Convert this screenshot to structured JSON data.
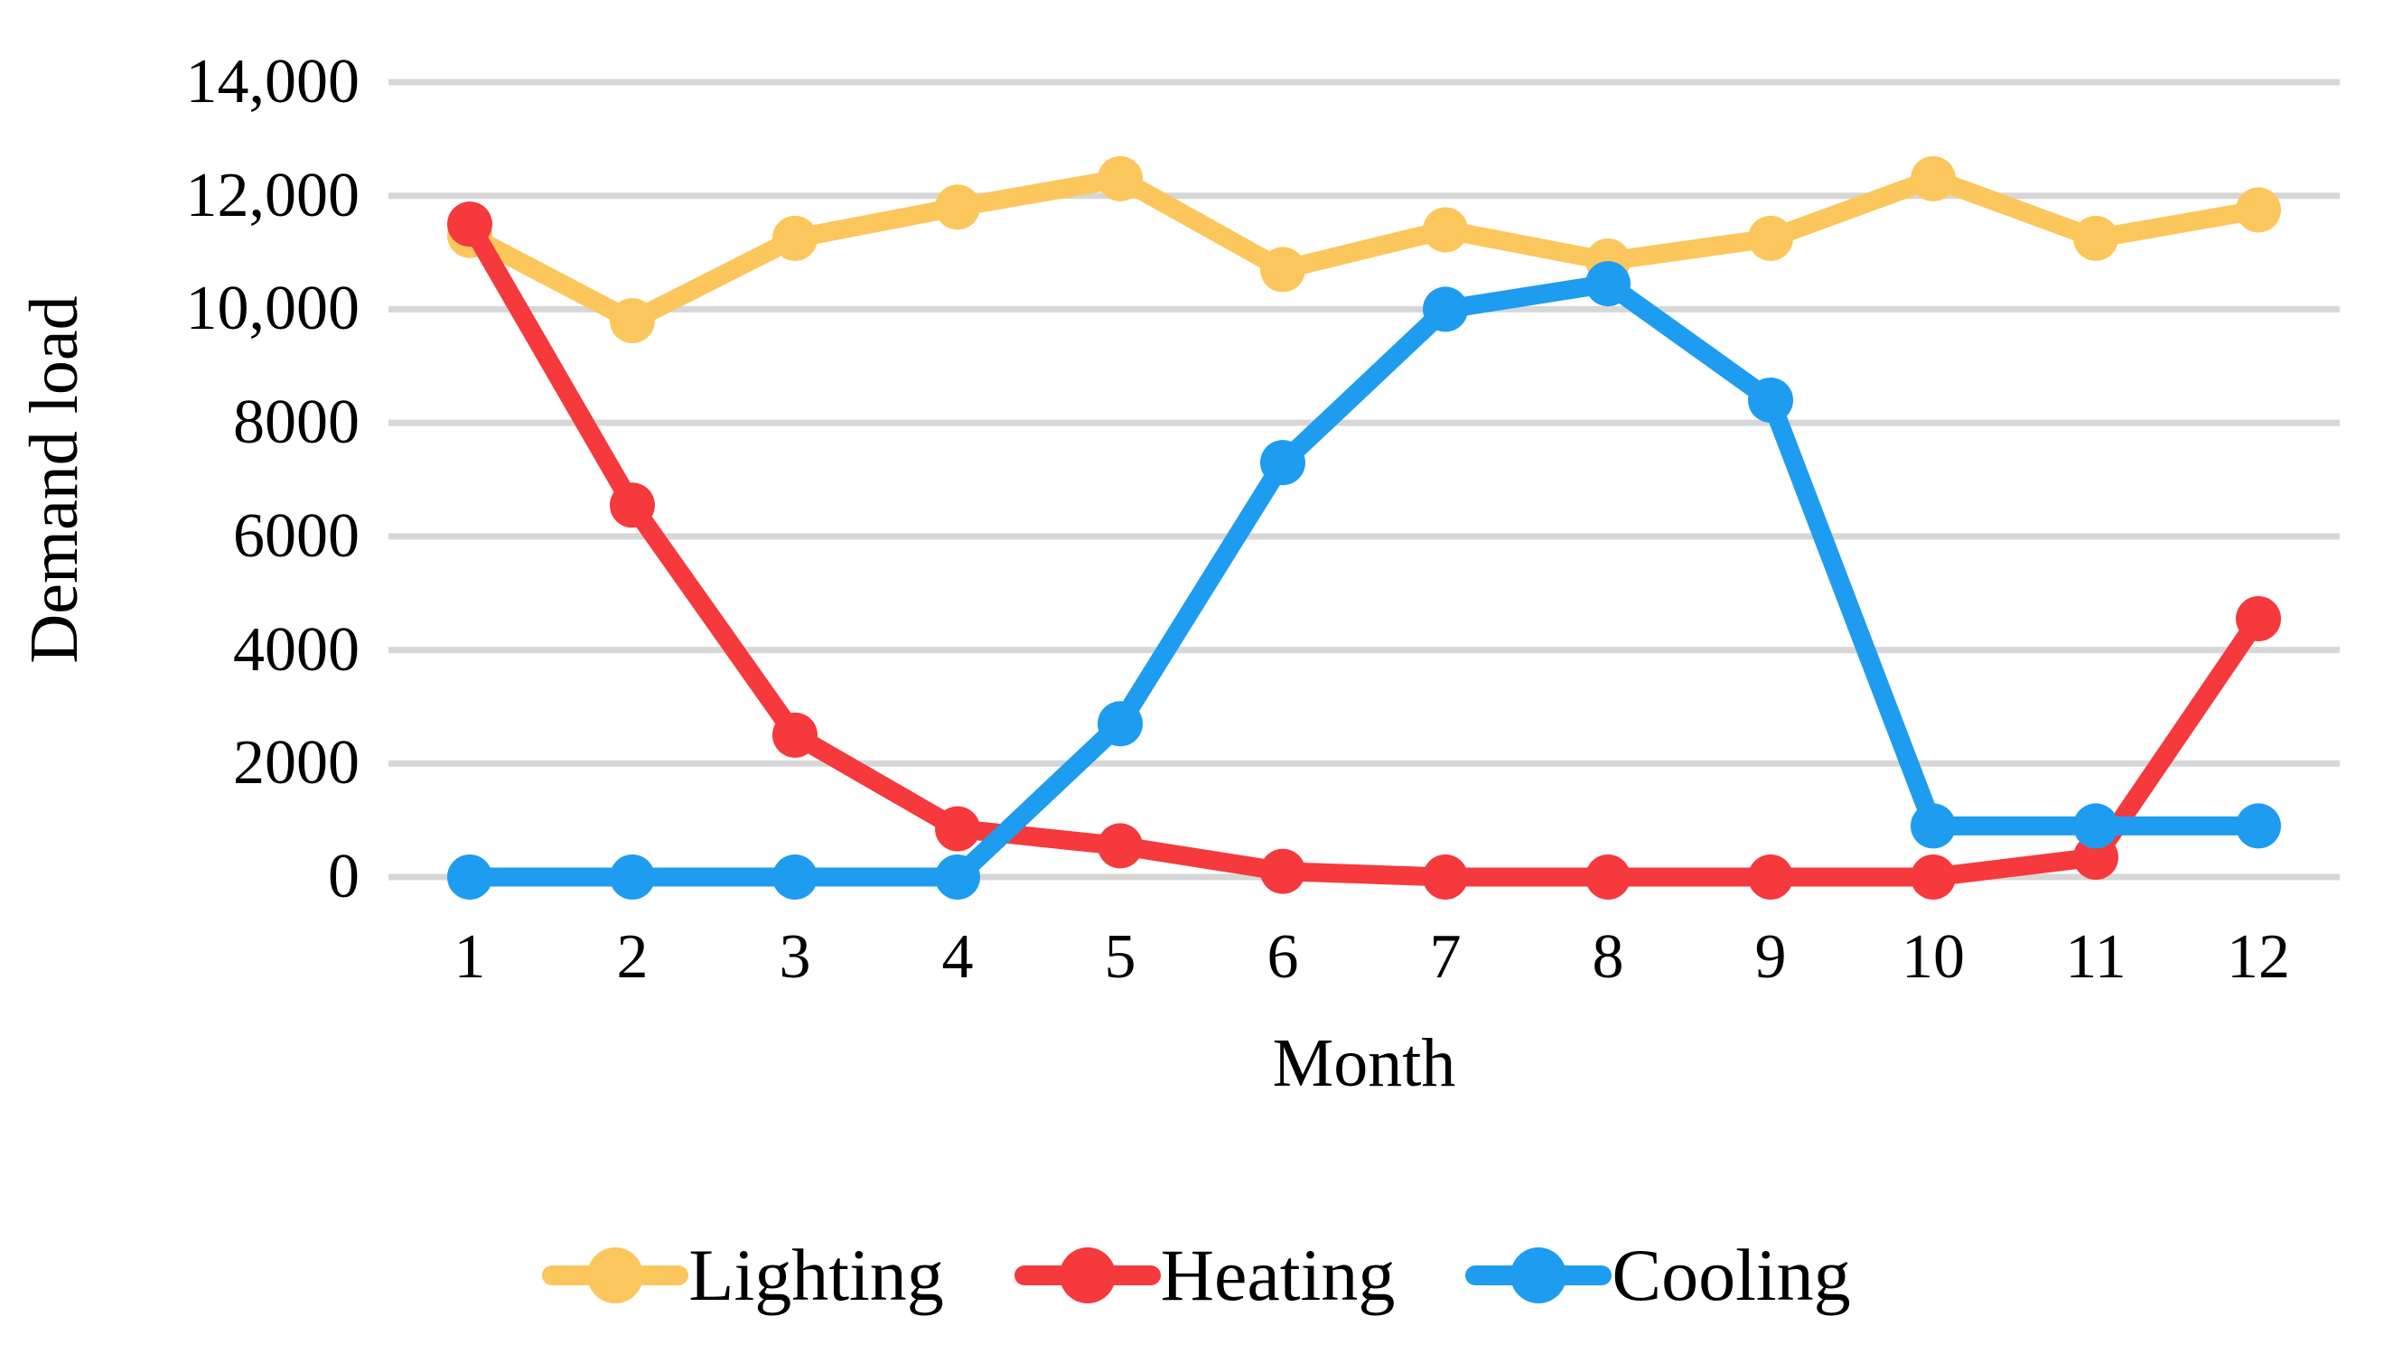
{
  "chart_data": {
    "type": "line",
    "title": "",
    "xlabel": "Month",
    "ylabel": "Demand load",
    "x": [
      1,
      2,
      3,
      4,
      5,
      6,
      7,
      8,
      9,
      10,
      11,
      12
    ],
    "xtick_labels": [
      "1",
      "2",
      "3",
      "4",
      "5",
      "6",
      "7",
      "8",
      "9",
      "10",
      "11",
      "12"
    ],
    "ylim": [
      0,
      14000
    ],
    "yticks": [
      {
        "label": "14,000",
        "value": 14000
      },
      {
        "label": "12,000",
        "value": 12000
      },
      {
        "label": "10,000",
        "value": 10000
      },
      {
        "label": "8000",
        "value": 8000
      },
      {
        "label": "6000",
        "value": 6000
      },
      {
        "label": "4000",
        "value": 4000
      },
      {
        "label": "2000",
        "value": 2000
      },
      {
        "label": "0",
        "value": 0
      }
    ],
    "grid": "horizontal",
    "gridline_color": "#D7D7D7",
    "background_color": "#FFFFFF",
    "text_color": "#000000",
    "legend_position": "bottom-center",
    "series": [
      {
        "name": "Lighting",
        "color": "#FBC75D",
        "values": [
          11300,
          9800,
          11250,
          11800,
          12300,
          10700,
          11400,
          10850,
          11250,
          12300,
          11250,
          11750
        ]
      },
      {
        "name": "Heating",
        "color": "#F5393C",
        "values": [
          11500,
          6550,
          2500,
          850,
          550,
          100,
          0,
          0,
          0,
          0,
          350,
          4550
        ]
      },
      {
        "name": "Cooling",
        "color": "#1E9CF0",
        "values": [
          0,
          0,
          0,
          0,
          2700,
          7300,
          10000,
          10450,
          8400,
          900,
          900,
          900
        ]
      }
    ]
  }
}
